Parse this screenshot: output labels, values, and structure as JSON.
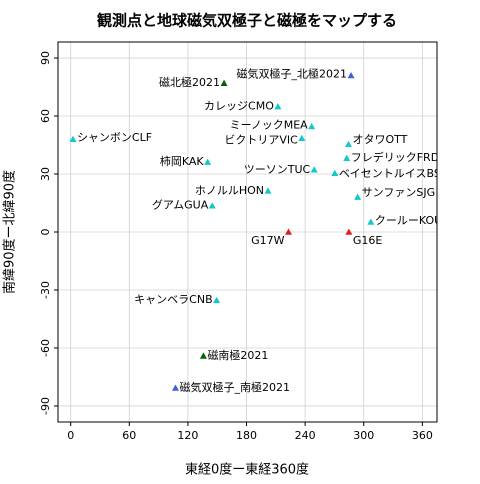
{
  "chart_data": {
    "type": "scatter",
    "title": "観測点と地球磁気双極子と磁極をマップする",
    "xlabel": "東経0度ー東経360度",
    "ylabel": "南緯90度ー北緯90度",
    "labels": [
      "磁気双極子_北極2021",
      "磁北極2021",
      "カレッジCMO",
      "ミーノックMEA",
      "ビクトリアVIC",
      "オタワOTT",
      "シャンボンCLF",
      "フレデリックFRD",
      "ベイセントルイスBSL",
      "柿岡KAK",
      "ツーソンTUC",
      "ホノルルHON",
      "サンファンSJG",
      "グアムGUA",
      "クールーKOU",
      "G17W",
      "G16E",
      "キャンベラCNB",
      "磁南極2021",
      "磁気双極子_南極2021"
    ],
    "x": [
      287,
      157,
      212.1,
      246.7,
      236.6,
      284.4,
      2.3,
      282.6,
      270.4,
      140.2,
      249.3,
      202,
      293.8,
      144.9,
      307.3,
      223,
      284.8,
      149.4,
      135.9,
      107.3
    ],
    "values": [
      81,
      77,
      64.9,
      54.6,
      48.5,
      45.4,
      48,
      38.2,
      30.4,
      36.2,
      32.2,
      21.3,
      18.1,
      13.6,
      5.2,
      0,
      0,
      -35.3,
      -64.1,
      -80.7
    ],
    "colors": [
      "#3f5fd8",
      "#006400",
      "#12c8c8",
      "#12c8c8",
      "#12c8c8",
      "#12c8c8",
      "#12c8c8",
      "#12c8c8",
      "#12c8c8",
      "#12c8c8",
      "#12c8c8",
      "#12c8c8",
      "#12c8c8",
      "#12c8c8",
      "#12c8c8",
      "#e02020",
      "#e02020",
      "#12c8c8",
      "#006400",
      "#3f5fd8"
    ],
    "xlim": [
      -13,
      375
    ],
    "ylim": [
      -98.3,
      98.3
    ],
    "xticks": [
      0,
      60,
      120,
      180,
      240,
      300,
      360
    ],
    "yticks": [
      -90,
      -60,
      -30,
      0,
      30,
      60,
      90
    ],
    "grid": true
  }
}
